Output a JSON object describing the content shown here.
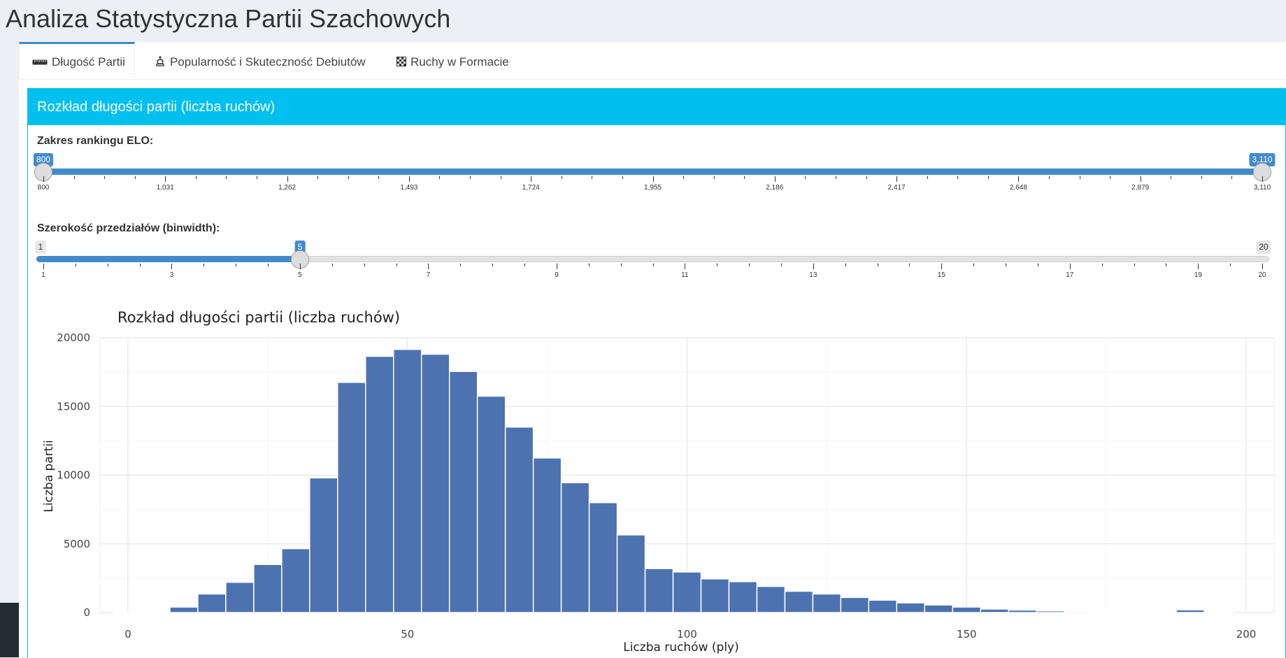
{
  "app": {
    "title": "Analiza Statystyczna Partii Szachowych"
  },
  "tabs": [
    {
      "label": "Długość Partii",
      "icon": "ruler-icon",
      "active": true
    },
    {
      "label": "Popularność i Skuteczność Debiutów",
      "icon": "chess-king-icon",
      "active": false
    },
    {
      "label": "Ruchy w Formacie",
      "icon": "chessboard-icon",
      "active": false
    }
  ],
  "box": {
    "title": "Rozkład długości partii (liczba ruchów)",
    "color": "#00c0ef"
  },
  "elo_slider": {
    "label": "Zakres rankingu ELO:",
    "min": 800,
    "max": 3110,
    "from": 800,
    "to": 3110,
    "from_label": "800",
    "to_label": "3,110",
    "ticks": [
      "800",
      "1,031",
      "1,262",
      "1,493",
      "1,724",
      "1,955",
      "2,186",
      "2,417",
      "2,648",
      "2,879",
      "3,110"
    ]
  },
  "bin_slider": {
    "label": "Szerokość przedziałów (binwidth):",
    "min": 1,
    "max": 20,
    "value": 5,
    "min_label": "1",
    "max_label": "20",
    "value_label": "5",
    "ticks": [
      "1",
      "3",
      "5",
      "7",
      "9",
      "11",
      "13",
      "15",
      "17",
      "19",
      "20"
    ]
  },
  "chart_data": {
    "type": "bar",
    "title": "Rozkład długości partii (liczba ruchów)",
    "xlabel": "Liczba ruchów (ply)",
    "ylabel": "Liczba partii",
    "xlim": [
      -5,
      205
    ],
    "ylim": [
      0,
      20000
    ],
    "xticks": [
      "0",
      "50",
      "100",
      "150",
      "200"
    ],
    "yticks": [
      "0",
      "5000",
      "10000",
      "15000",
      "20000"
    ],
    "binwidth": 5,
    "bar_color": "#4c72b0",
    "grid": true,
    "bins": [
      {
        "x": 0,
        "value": 20
      },
      {
        "x": 5,
        "value": 50
      },
      {
        "x": 10,
        "value": 400
      },
      {
        "x": 15,
        "value": 1350
      },
      {
        "x": 20,
        "value": 2200
      },
      {
        "x": 25,
        "value": 3500
      },
      {
        "x": 30,
        "value": 4650
      },
      {
        "x": 35,
        "value": 9800
      },
      {
        "x": 40,
        "value": 16750
      },
      {
        "x": 45,
        "value": 18650
      },
      {
        "x": 50,
        "value": 19150
      },
      {
        "x": 55,
        "value": 18800
      },
      {
        "x": 60,
        "value": 17550
      },
      {
        "x": 65,
        "value": 15750
      },
      {
        "x": 70,
        "value": 13500
      },
      {
        "x": 75,
        "value": 11250
      },
      {
        "x": 80,
        "value": 9450
      },
      {
        "x": 85,
        "value": 8000
      },
      {
        "x": 90,
        "value": 5650
      },
      {
        "x": 95,
        "value": 3200
      },
      {
        "x": 100,
        "value": 2950
      },
      {
        "x": 105,
        "value": 2450
      },
      {
        "x": 110,
        "value": 2250
      },
      {
        "x": 115,
        "value": 1900
      },
      {
        "x": 120,
        "value": 1550
      },
      {
        "x": 125,
        "value": 1350
      },
      {
        "x": 130,
        "value": 1100
      },
      {
        "x": 135,
        "value": 900
      },
      {
        "x": 140,
        "value": 700
      },
      {
        "x": 145,
        "value": 550
      },
      {
        "x": 150,
        "value": 400
      },
      {
        "x": 155,
        "value": 250
      },
      {
        "x": 160,
        "value": 180
      },
      {
        "x": 165,
        "value": 120
      },
      {
        "x": 170,
        "value": 80
      },
      {
        "x": 175,
        "value": 30
      },
      {
        "x": 180,
        "value": 20
      },
      {
        "x": 185,
        "value": 10
      },
      {
        "x": 190,
        "value": 200
      },
      {
        "x": 195,
        "value": 10
      }
    ]
  }
}
